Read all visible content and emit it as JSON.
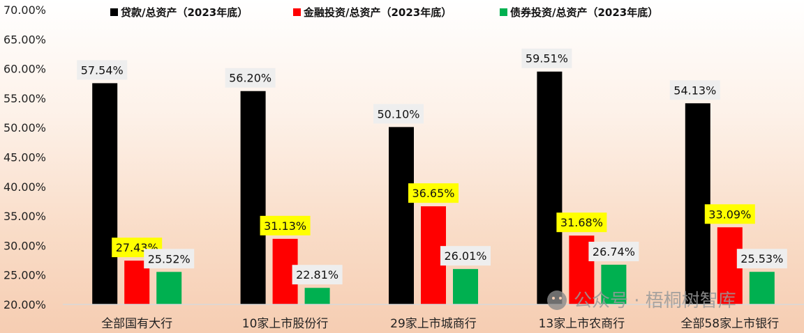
{
  "chart_data": {
    "type": "bar",
    "categories": [
      "全部国有大行",
      "10家上市股份行",
      "29家上市城商行",
      "13家上市农商行",
      "全部58家上市银行"
    ],
    "series": [
      {
        "name": "贷款/总资产（2023年底）",
        "color": "#000000",
        "label_bg": "#eeeeee",
        "values": [
          57.54,
          56.2,
          50.1,
          59.51,
          54.13
        ]
      },
      {
        "name": "金融投资/总资产（2023年底）",
        "color": "#ff0000",
        "label_bg": "#ffff00",
        "values": [
          27.43,
          31.13,
          36.65,
          31.68,
          33.09
        ]
      },
      {
        "name": "债券投资/总资产（2023年底）",
        "color": "#00b050",
        "label_bg": "#eeeeee",
        "values": [
          25.52,
          22.81,
          26.01,
          26.74,
          25.53
        ]
      }
    ],
    "data_labels": [
      [
        "57.54%",
        "56.20%",
        "50.10%",
        "59.51%",
        "54.13%"
      ],
      [
        "27.43%",
        "31.13%",
        "36.65%",
        "31.68%",
        "33.09%"
      ],
      [
        "25.52%",
        "22.81%",
        "26.01%",
        "26.74%",
        "25.53%"
      ]
    ],
    "y_ticks": [
      20,
      25,
      30,
      35,
      40,
      45,
      50,
      55,
      60,
      65,
      70
    ],
    "y_tick_labels": [
      "20.00%",
      "25.00%",
      "30.00%",
      "35.00%",
      "40.00%",
      "45.00%",
      "50.00%",
      "55.00%",
      "60.00%",
      "65.00%",
      "70.00%"
    ],
    "ylim": [
      20,
      70
    ],
    "grid": false,
    "legend_position": "top"
  },
  "watermark": {
    "text": "公众号 · 梧桐树智库",
    "icon": "wechat-icon"
  }
}
